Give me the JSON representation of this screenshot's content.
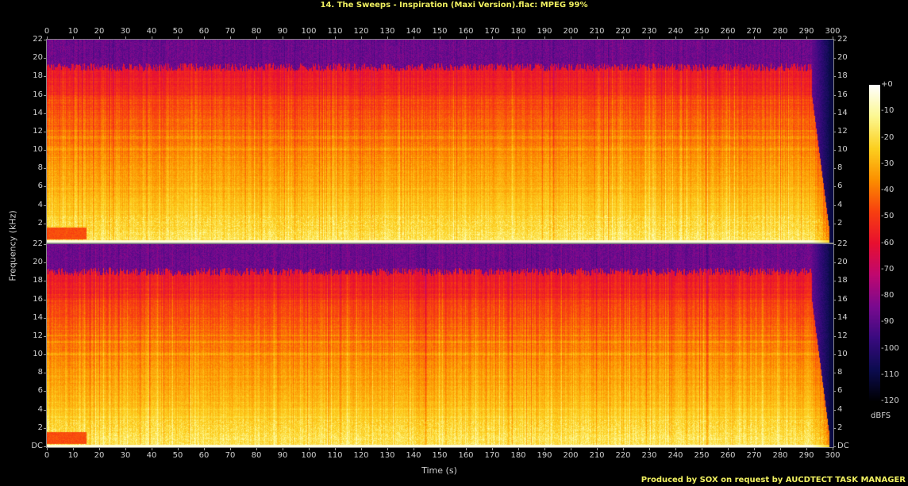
{
  "title": "14. The Sweeps - Inspiration (Maxi Version).flac: MPEG 99%",
  "footer": "Produced by SOX on request by AUCDTECT TASK MANAGER",
  "chart_data": {
    "type": "heatmap",
    "subtype": "spectrogram",
    "channels": 2,
    "xlabel": "Time (s)",
    "ylabel": "Frequency (kHz)",
    "xlim": [
      0,
      300
    ],
    "ylim": [
      0,
      22
    ],
    "x_ticks": [
      "0",
      "10",
      "20",
      "30",
      "40",
      "50",
      "60",
      "70",
      "80",
      "90",
      "100",
      "110",
      "120",
      "130",
      "140",
      "150",
      "160",
      "170",
      "180",
      "190",
      "200",
      "210",
      "220",
      "230",
      "240",
      "250",
      "260",
      "270",
      "280",
      "290",
      "300"
    ],
    "y_ticks_top": [
      "2",
      "4",
      "6",
      "8",
      "10",
      "12",
      "14",
      "16",
      "18",
      "20",
      "22"
    ],
    "y_ticks_bottom": [
      "DC",
      "2",
      "4",
      "6",
      "8",
      "10",
      "12",
      "14",
      "16",
      "18",
      "20",
      "22"
    ],
    "colorbar": {
      "label": "dBFS",
      "range": [
        -120,
        0
      ],
      "ticks": [
        "+0",
        "-10",
        "-20",
        "-30",
        "-40",
        "-50",
        "-60",
        "-70",
        "-80",
        "-90",
        "-100",
        "-110",
        "-120"
      ],
      "colors": [
        "#000000",
        "#0c0c50",
        "#3a0a80",
        "#7a0a90",
        "#c00870",
        "#e81030",
        "#f84010",
        "#fc9000",
        "#fcd020",
        "#fcf890",
        "#ffffff"
      ]
    },
    "observed": {
      "lowpass_cutoff_khz": 19,
      "fade_out_start_s": 292,
      "quiet_intro_end_s": 15
    }
  }
}
